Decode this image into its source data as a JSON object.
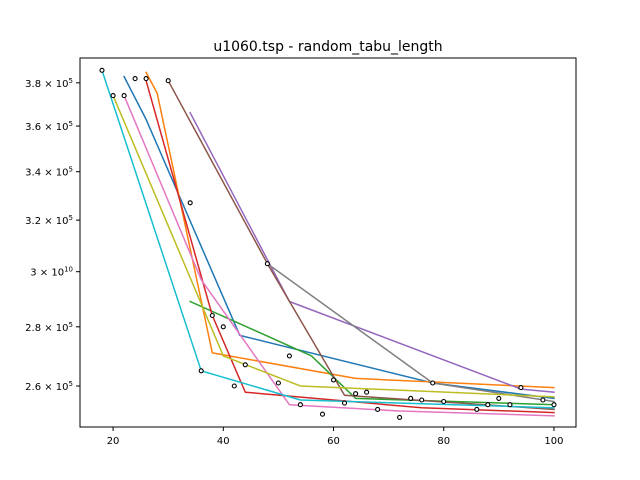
{
  "chart_data": {
    "type": "line",
    "title": "u1060.tsp - random_tabu_length",
    "xlabel": "",
    "ylabel": "",
    "y_scale": "log",
    "xlim": [
      14,
      104
    ],
    "ylim": [
      247000,
      392000
    ],
    "x_ticks": [
      20,
      40,
      60,
      80,
      100
    ],
    "x_tick_labels": [
      "20",
      "40",
      "60",
      "80",
      "100"
    ],
    "y_ticks": [
      260000,
      280000,
      300000,
      320000,
      340000,
      360000,
      380000
    ],
    "y_tick_labels": [
      {
        "mantissa": "2.6",
        "base": "10",
        "exp": "5"
      },
      {
        "mantissa": "2.8",
        "base": "10",
        "exp": "5"
      },
      {
        "mantissa": "",
        "base": "3",
        "exp": "10",
        "prefix": "3 × 10"
      },
      {
        "mantissa": "3.2",
        "base": "10",
        "exp": "5"
      },
      {
        "mantissa": "3.4",
        "base": "10",
        "exp": "5"
      },
      {
        "mantissa": "3.6",
        "base": "10",
        "exp": "5"
      },
      {
        "mantissa": "3.8",
        "base": "10",
        "exp": "5"
      }
    ],
    "grid": false,
    "legend": "none",
    "series": [
      {
        "color": "#1f77b4",
        "x": [
          22,
          26,
          43,
          78,
          100
        ],
        "y": [
          383000,
          363000,
          277000,
          261000,
          256000
        ]
      },
      {
        "color": "#ff7f0e",
        "x": [
          26,
          28,
          38,
          64,
          100
        ],
        "y": [
          385000,
          375000,
          271000,
          262500,
          259500
        ]
      },
      {
        "color": "#2ca02c",
        "x": [
          34,
          56,
          64,
          100
        ],
        "y": [
          289000,
          270000,
          256000,
          254000
        ]
      },
      {
        "color": "#d62728",
        "x": [
          26,
          38,
          44,
          76,
          100
        ],
        "y": [
          381000,
          284000,
          258000,
          253000,
          251500
        ]
      },
      {
        "color": "#9467bd",
        "x": [
          34,
          52,
          94,
          100
        ],
        "y": [
          366000,
          289000,
          259000,
          258000
        ]
      },
      {
        "color": "#8c564b",
        "x": [
          30,
          48,
          62,
          100
        ],
        "y": [
          381000,
          303000,
          257000,
          252500
        ]
      },
      {
        "color": "#e377c2",
        "x": [
          22,
          36,
          52,
          72,
          100
        ],
        "y": [
          374000,
          297000,
          254000,
          252000,
          250500
        ]
      },
      {
        "color": "#7f7f7f",
        "x": [
          48,
          78,
          100
        ],
        "y": [
          303000,
          261000,
          255000
        ]
      },
      {
        "color": "#bcbd22",
        "x": [
          20,
          40,
          54,
          100
        ],
        "y": [
          374000,
          270000,
          260000,
          256500
        ]
      },
      {
        "color": "#17becf",
        "x": [
          18,
          36,
          54,
          100
        ],
        "y": [
          386000,
          265000,
          255500,
          253000
        ]
      }
    ],
    "markers": {
      "x": [
        18,
        20,
        22,
        24,
        26,
        30,
        34,
        36,
        38,
        40,
        42,
        44,
        48,
        50,
        52,
        54,
        58,
        60,
        62,
        64,
        66,
        68,
        72,
        74,
        76,
        78,
        80,
        86,
        88,
        90,
        92,
        94,
        98,
        100
      ],
      "y": [
        386000,
        374000,
        374000,
        382000,
        382000,
        381000,
        327000,
        265000,
        284000,
        280000,
        260000,
        267000,
        303000,
        261000,
        270000,
        254000,
        251000,
        262000,
        254500,
        257500,
        258000,
        252500,
        250000,
        256000,
        255500,
        261000,
        255000,
        252500,
        254000,
        256000,
        254000,
        259500,
        255500,
        254000
      ]
    }
  }
}
